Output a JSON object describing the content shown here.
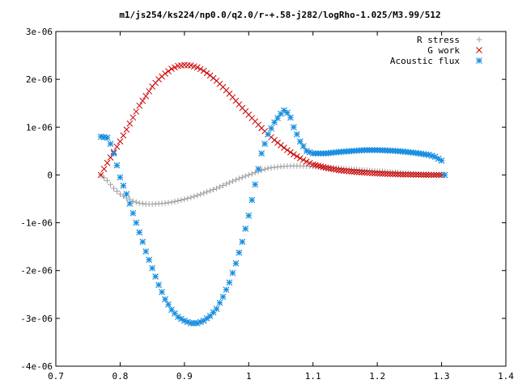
{
  "chart_data": {
    "type": "scatter",
    "title": "m1/js254/ks224/np0.0/q2.0/r-+.58-j282/logRho-1.025/M3.99/512",
    "xlim": [
      0.7,
      1.4
    ],
    "ylim": [
      -4e-06,
      3e-06
    ],
    "x_ticks": [
      0.7,
      0.8,
      0.9,
      1.0,
      1.1,
      1.2,
      1.3,
      1.4
    ],
    "x_tick_labels": [
      "0.7",
      "0.8",
      "0.9",
      "1",
      "1.1",
      "1.2",
      "1.3",
      "1.4"
    ],
    "y_ticks": [
      3e-06,
      2e-06,
      1e-06,
      0,
      -1e-06,
      -2e-06,
      -3e-06,
      -4e-06
    ],
    "y_tick_labels": [
      "3e-06",
      "2e-06",
      "1e-06",
      "0",
      "-1e-06",
      "-2e-06",
      "-3e-06",
      "-4e-06"
    ],
    "grid": false,
    "legend_position": "top-right",
    "series": [
      {
        "name": "R stress",
        "marker": "plus",
        "color": "#a0a0a0",
        "points": [
          [
            0.77,
            0.0
          ],
          [
            0.78,
            -1.2e-07
          ],
          [
            0.79,
            -2.8e-07
          ],
          [
            0.8,
            -4e-07
          ],
          [
            0.81,
            -4.8e-07
          ],
          [
            0.82,
            -5.5e-07
          ],
          [
            0.83,
            -5.9e-07
          ],
          [
            0.84,
            -6.1e-07
          ],
          [
            0.85,
            -6.1e-07
          ],
          [
            0.86,
            -6e-07
          ],
          [
            0.87,
            -5.9e-07
          ],
          [
            0.88,
            -5.7e-07
          ],
          [
            0.89,
            -5.4e-07
          ],
          [
            0.9,
            -5.1e-07
          ],
          [
            0.91,
            -4.7e-07
          ],
          [
            0.92,
            -4.3e-07
          ],
          [
            0.93,
            -3.8e-07
          ],
          [
            0.94,
            -3.3e-07
          ],
          [
            0.95,
            -2.8e-07
          ],
          [
            0.96,
            -2.2e-07
          ],
          [
            0.97,
            -1.6e-07
          ],
          [
            0.98,
            -1e-07
          ],
          [
            0.99,
            -5e-08
          ],
          [
            1.0,
            0.0
          ],
          [
            1.01,
            5e-08
          ],
          [
            1.02,
            1e-07
          ],
          [
            1.03,
            1.4e-07
          ],
          [
            1.04,
            1.6e-07
          ],
          [
            1.05,
            1.75e-07
          ],
          [
            1.06,
            1.85e-07
          ],
          [
            1.07,
            1.9e-07
          ],
          [
            1.08,
            1.9e-07
          ],
          [
            1.09,
            1.85e-07
          ],
          [
            1.1,
            1.8e-07
          ],
          [
            1.12,
            1.6e-07
          ],
          [
            1.14,
            1.4e-07
          ],
          [
            1.16,
            1.2e-07
          ],
          [
            1.18,
            1e-07
          ],
          [
            1.2,
            8e-08
          ],
          [
            1.22,
            6e-08
          ],
          [
            1.24,
            4e-08
          ],
          [
            1.26,
            2e-08
          ],
          [
            1.28,
            1e-08
          ],
          [
            1.3,
            0.0
          ]
        ]
      },
      {
        "name": "G work",
        "marker": "cross",
        "color": "#cc0000",
        "points": [
          [
            0.77,
            0.0
          ],
          [
            0.78,
            2.5e-07
          ],
          [
            0.79,
            4.8e-07
          ],
          [
            0.8,
            7e-07
          ],
          [
            0.81,
            9.5e-07
          ],
          [
            0.82,
            1.2e-06
          ],
          [
            0.83,
            1.45e-06
          ],
          [
            0.84,
            1.65e-06
          ],
          [
            0.85,
            1.85e-06
          ],
          [
            0.86,
            2e-06
          ],
          [
            0.87,
            2.12e-06
          ],
          [
            0.88,
            2.22e-06
          ],
          [
            0.89,
            2.28e-06
          ],
          [
            0.9,
            2.3e-06
          ],
          [
            0.91,
            2.29e-06
          ],
          [
            0.92,
            2.25e-06
          ],
          [
            0.93,
            2.18e-06
          ],
          [
            0.94,
            2.08e-06
          ],
          [
            0.95,
            1.97e-06
          ],
          [
            0.96,
            1.84e-06
          ],
          [
            0.97,
            1.7e-06
          ],
          [
            0.98,
            1.55e-06
          ],
          [
            0.99,
            1.4e-06
          ],
          [
            1.0,
            1.26e-06
          ],
          [
            1.01,
            1.12e-06
          ],
          [
            1.02,
            9.8e-07
          ],
          [
            1.03,
            8.5e-07
          ],
          [
            1.04,
            7.3e-07
          ],
          [
            1.05,
            6.2e-07
          ],
          [
            1.06,
            5.2e-07
          ],
          [
            1.07,
            4.3e-07
          ],
          [
            1.08,
            3.5e-07
          ],
          [
            1.09,
            2.8e-07
          ],
          [
            1.1,
            2.2e-07
          ],
          [
            1.12,
            1.5e-07
          ],
          [
            1.14,
            1e-07
          ],
          [
            1.16,
            7e-08
          ],
          [
            1.18,
            5e-08
          ],
          [
            1.2,
            3e-08
          ],
          [
            1.22,
            2e-08
          ],
          [
            1.24,
            1e-08
          ],
          [
            1.26,
            5e-09
          ],
          [
            1.28,
            0.0
          ],
          [
            1.3,
            0.0
          ]
        ]
      },
      {
        "name": "Acoustic flux",
        "marker": "star",
        "color": "#1a8fe0",
        "points": [
          [
            0.77,
            8e-07
          ],
          [
            0.78,
            7.8e-07
          ],
          [
            0.785,
            6.5e-07
          ],
          [
            0.79,
            4.5e-07
          ],
          [
            0.795,
            2e-07
          ],
          [
            0.8,
            -5e-08
          ],
          [
            0.81,
            -4e-07
          ],
          [
            0.82,
            -8e-07
          ],
          [
            0.83,
            -1.2e-06
          ],
          [
            0.84,
            -1.6e-06
          ],
          [
            0.85,
            -1.95e-06
          ],
          [
            0.86,
            -2.3e-06
          ],
          [
            0.87,
            -2.6e-06
          ],
          [
            0.88,
            -2.82e-06
          ],
          [
            0.89,
            -2.97e-06
          ],
          [
            0.9,
            -3.05e-06
          ],
          [
            0.91,
            -3.1e-06
          ],
          [
            0.92,
            -3.1e-06
          ],
          [
            0.93,
            -3.05e-06
          ],
          [
            0.94,
            -2.95e-06
          ],
          [
            0.95,
            -2.8e-06
          ],
          [
            0.96,
            -2.55e-06
          ],
          [
            0.97,
            -2.25e-06
          ],
          [
            0.98,
            -1.85e-06
          ],
          [
            0.99,
            -1.4e-06
          ],
          [
            1.0,
            -8.5e-07
          ],
          [
            1.01,
            -2e-07
          ],
          [
            1.02,
            4.5e-07
          ],
          [
            1.03,
            8.5e-07
          ],
          [
            1.04,
            1.1e-06
          ],
          [
            1.05,
            1.28e-06
          ],
          [
            1.055,
            1.35e-06
          ],
          [
            1.06,
            1.3e-06
          ],
          [
            1.065,
            1.2e-06
          ],
          [
            1.07,
            1e-06
          ],
          [
            1.08,
            7e-07
          ],
          [
            1.09,
            5e-07
          ],
          [
            1.1,
            4.5e-07
          ],
          [
            1.12,
            4.5e-07
          ],
          [
            1.14,
            4.8e-07
          ],
          [
            1.16,
            5e-07
          ],
          [
            1.18,
            5.2e-07
          ],
          [
            1.2,
            5.2e-07
          ],
          [
            1.22,
            5.1e-07
          ],
          [
            1.24,
            4.9e-07
          ],
          [
            1.26,
            4.6e-07
          ],
          [
            1.28,
            4.2e-07
          ],
          [
            1.29,
            3.8e-07
          ],
          [
            1.3,
            3e-07
          ],
          [
            1.305,
            0.0
          ]
        ]
      }
    ]
  }
}
